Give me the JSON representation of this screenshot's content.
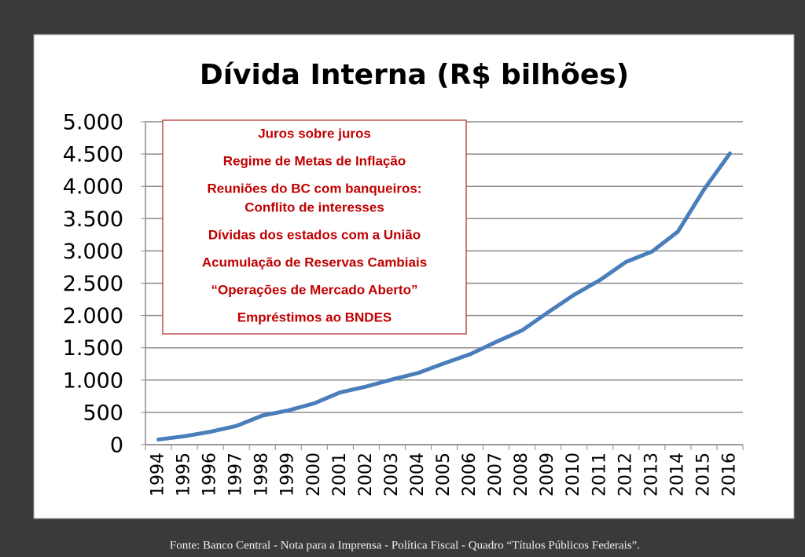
{
  "chart_data": {
    "type": "line",
    "title": "Dívida Interna (R$ bilhões)",
    "categories": [
      "1994",
      "1995",
      "1996",
      "1997",
      "1998",
      "1999",
      "2000",
      "2001",
      "2002",
      "2003",
      "2004",
      "2005",
      "2006",
      "2007",
      "2008",
      "2009",
      "2010",
      "2011",
      "2012",
      "2013",
      "2014",
      "2015",
      "2016"
    ],
    "series": [
      {
        "name": "Dívida Interna",
        "color": "#4a7ebb",
        "values": [
          80,
          130,
          200,
          290,
          450,
          530,
          640,
          810,
          900,
          1010,
          1110,
          1260,
          1400,
          1590,
          1770,
          2050,
          2320,
          2550,
          2830,
          2990,
          3300,
          3950,
          4510
        ]
      }
    ],
    "ylim": [
      0,
      5000
    ],
    "yticks": [
      0,
      500,
      {
        "value": 1000,
        "label": "1.000"
      },
      {
        "value": 1500,
        "label": "1.500"
      },
      {
        "value": 2000,
        "label": "2.000"
      },
      {
        "value": 2500,
        "label": "2.500"
      },
      {
        "value": 3000,
        "label": "3.000"
      },
      {
        "value": 3500,
        "label": "3.500"
      },
      {
        "value": 4000,
        "label": "4.000"
      },
      {
        "value": 4500,
        "label": "4.500"
      },
      {
        "value": 5000,
        "label": "5.000"
      }
    ],
    "grid": true,
    "annotation_box": [
      [
        "Juros sobre juros"
      ],
      [
        "Regime de Metas de Inflação"
      ],
      [
        "Reuniões do BC com banqueiros:",
        "Conflito de interesses"
      ],
      [
        "Dívidas dos estados com a União"
      ],
      [
        "Acumulação de Reservas Cambiais"
      ],
      [
        "“Operações de Mercado Aberto”"
      ],
      [
        "Empréstimos ao BNDES"
      ]
    ],
    "source": "Fonte: Banco Central - Nota para a Imprensa - Política Fiscal - Quadro “Títulos Públicos Federais”."
  }
}
